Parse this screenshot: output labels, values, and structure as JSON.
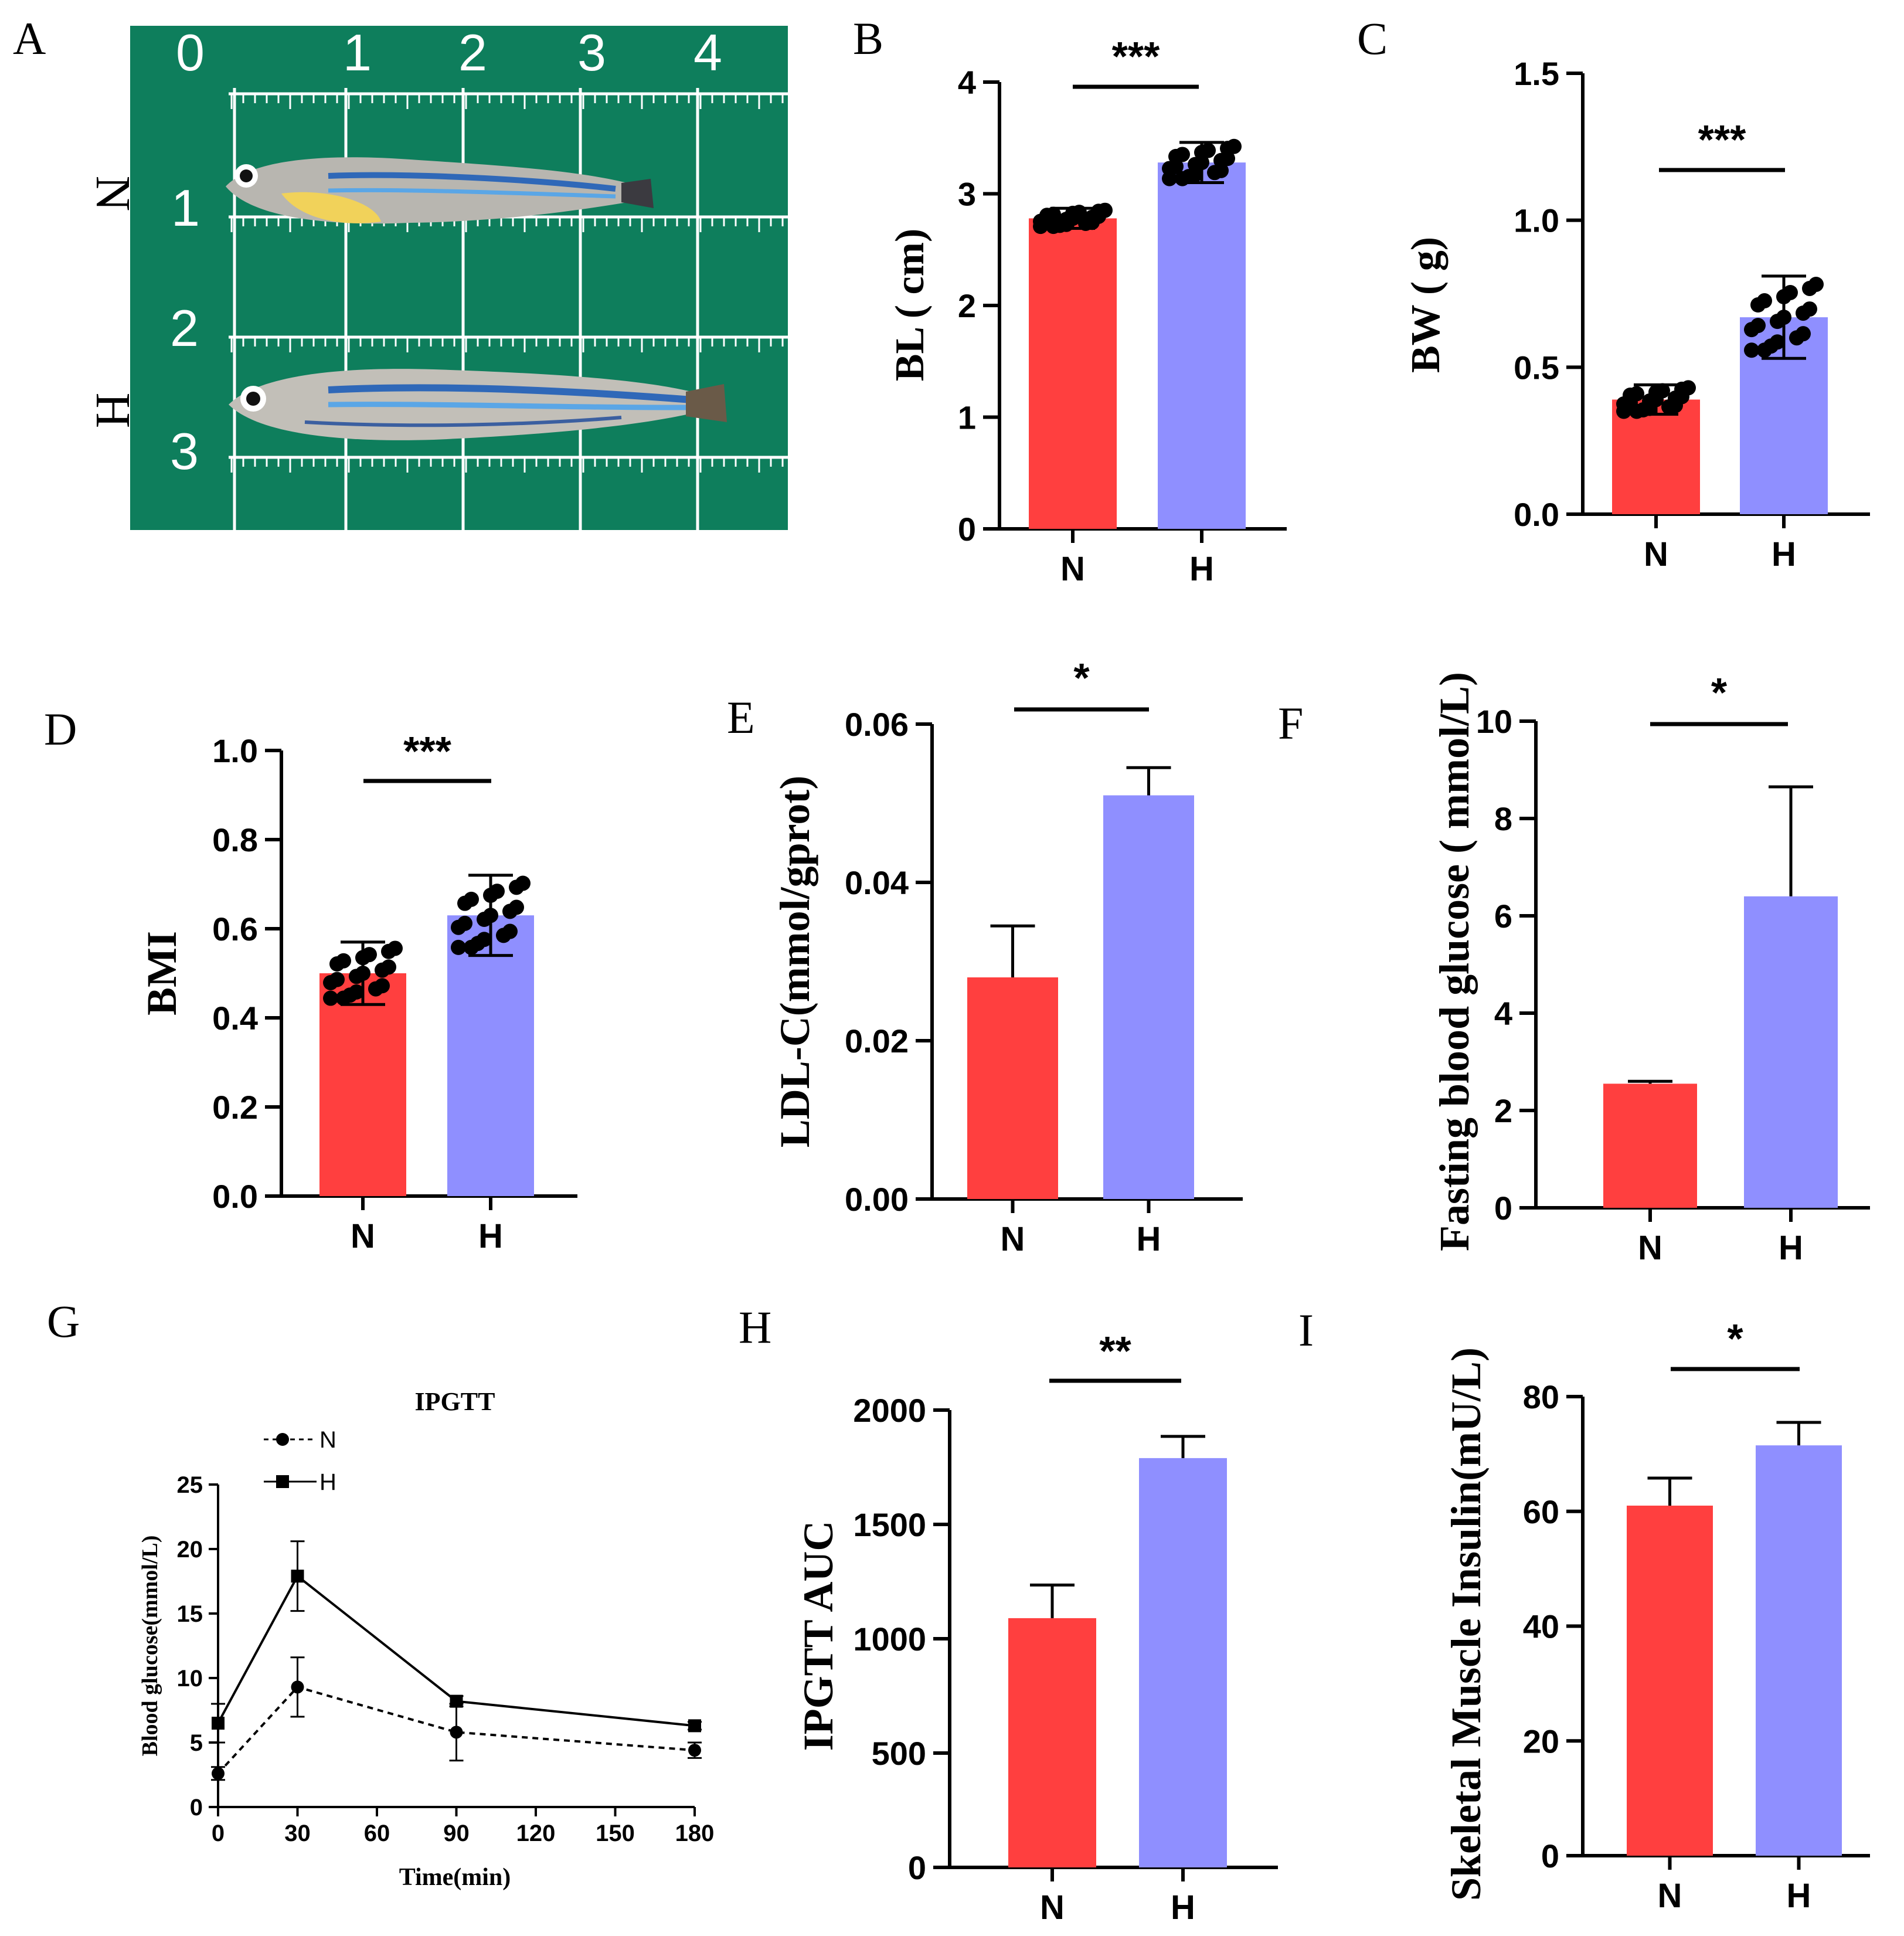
{
  "colors": {
    "N": "#ff3f3f",
    "H": "#8f8fff",
    "dots": "#000000",
    "ruler_green": "#0b7a5a"
  },
  "panels": {
    "A": {
      "letter": "A",
      "row_labels": [
        "N",
        "H"
      ],
      "ruler_top": [
        "0",
        "1",
        "2",
        "3",
        "4"
      ],
      "ruler_side": [
        "1",
        "2",
        "3"
      ]
    }
  },
  "chart_data": [
    {
      "id": "B",
      "letter": "B",
      "type": "bar",
      "categories": [
        "N",
        "H"
      ],
      "values": [
        2.78,
        3.28
      ],
      "errors": [
        0.09,
        0.18
      ],
      "ylabel": "BL ( cm)",
      "ylim": [
        0,
        4
      ],
      "yticks": [
        "0",
        "1",
        "2",
        "3",
        "4"
      ],
      "significance": "***",
      "show_points": true
    },
    {
      "id": "C",
      "letter": "C",
      "type": "bar",
      "categories": [
        "N",
        "H"
      ],
      "values": [
        0.39,
        0.67
      ],
      "errors": [
        0.05,
        0.14
      ],
      "ylabel": "BW ( g)",
      "ylim": [
        0,
        1.5
      ],
      "yticks": [
        "0.0",
        "0.5",
        "1.0",
        "1.5"
      ],
      "significance": "***",
      "show_points": true
    },
    {
      "id": "D",
      "letter": "D",
      "type": "bar",
      "categories": [
        "N",
        "H"
      ],
      "values": [
        0.5,
        0.63
      ],
      "errors": [
        0.07,
        0.09
      ],
      "ylabel": "BMI",
      "ylim": [
        0,
        1.0
      ],
      "yticks": [
        "0.0",
        "0.2",
        "0.4",
        "0.6",
        "0.8",
        "1.0"
      ],
      "significance": "***",
      "show_points": true
    },
    {
      "id": "E",
      "letter": "E",
      "type": "bar",
      "categories": [
        "N",
        "H"
      ],
      "values": [
        0.028,
        0.051
      ],
      "errors": [
        0.0065,
        0.0035
      ],
      "ylabel": "LDL-C(mmol/gprot)",
      "ylim": [
        0,
        0.06
      ],
      "yticks": [
        "0.00",
        "0.02",
        "0.04",
        "0.06"
      ],
      "significance": "*",
      "show_points": false
    },
    {
      "id": "F",
      "letter": "F",
      "type": "bar",
      "categories": [
        "N",
        "H"
      ],
      "values": [
        2.55,
        6.4
      ],
      "errors": [
        0.05,
        2.25
      ],
      "ylabel": "Fasting blood glucose ( mmol/L)",
      "ylim": [
        0,
        10
      ],
      "yticks": [
        "0",
        "2",
        "4",
        "6",
        "8",
        "10"
      ],
      "significance": "*",
      "show_points": false
    },
    {
      "id": "G",
      "letter": "G",
      "type": "line",
      "title": "IPGTT",
      "xlabel": "Time(min)",
      "ylabel": "Blood glucose(mmol/L)",
      "x": [
        0,
        30,
        90,
        180
      ],
      "xlim": [
        0,
        180
      ],
      "xticks": [
        "0",
        "30",
        "60",
        "90",
        "120",
        "150",
        "180"
      ],
      "ylim": [
        0,
        25
      ],
      "yticks": [
        "0",
        "5",
        "10",
        "15",
        "20",
        "25"
      ],
      "series": [
        {
          "name": "N",
          "values": [
            2.6,
            9.3,
            5.8,
            4.4
          ],
          "errors": [
            0.5,
            2.3,
            2.2,
            0.6
          ],
          "marker": "circle",
          "dashed": true
        },
        {
          "name": "H",
          "values": [
            6.5,
            17.9,
            8.2,
            6.3
          ],
          "errors": [
            1.5,
            2.7,
            0.4,
            0.3
          ],
          "marker": "square",
          "dashed": false
        }
      ]
    },
    {
      "id": "H",
      "letter": "H",
      "type": "bar",
      "categories": [
        "N",
        "H"
      ],
      "values": [
        1090,
        1790
      ],
      "errors": [
        145,
        95
      ],
      "ylabel": "IPGTT AUC",
      "ylim": [
        0,
        2000
      ],
      "yticks": [
        "0",
        "500",
        "1000",
        "1500",
        "2000"
      ],
      "significance": "**",
      "show_points": false
    },
    {
      "id": "I",
      "letter": "I",
      "type": "bar",
      "categories": [
        "N",
        "H"
      ],
      "values": [
        61,
        71.5
      ],
      "errors": [
        4.8,
        4.0
      ],
      "ylabel": "Skeletal Muscle Insulin(mU/L)",
      "ylim": [
        0,
        80
      ],
      "yticks": [
        "0",
        "20",
        "40",
        "60",
        "80"
      ],
      "significance": "*",
      "show_points": false
    }
  ]
}
